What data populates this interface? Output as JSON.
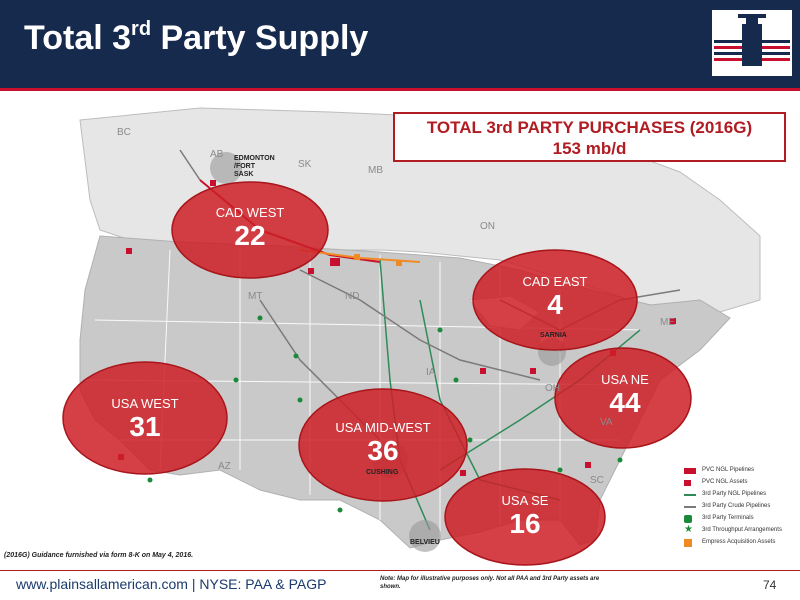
{
  "header": {
    "title_prefix": "Total 3",
    "title_sup": "rd",
    "title_suffix": " Party Supply"
  },
  "purchases": {
    "title": "TOTAL 3rd PARTY PURCHASES (2016G)",
    "value": "153 mb/d"
  },
  "regions": [
    {
      "name": "CAD WEST",
      "value": "22"
    },
    {
      "name": "CAD EAST",
      "value": "4"
    },
    {
      "name": "USA WEST",
      "value": "31"
    },
    {
      "name": "USA MID-WEST",
      "value": "36"
    },
    {
      "name": "USA NE",
      "value": "44"
    },
    {
      "name": "USA SE",
      "value": "16"
    }
  ],
  "provinces": [
    "BC",
    "AB",
    "SK",
    "MB",
    "ON",
    "MT",
    "ND",
    "IA",
    "AZ",
    "OH",
    "VA",
    "SC",
    "ME"
  ],
  "cities": {
    "edmonton": "EDMONTON /FORT SASK",
    "sarnia": "SARNIA",
    "cushing": "CUSHING",
    "belvieu": "BELVIEU"
  },
  "legend": [
    {
      "label": "PVC NGL Pipelines",
      "color": "#c8102e"
    },
    {
      "label": "PVC NGL Assets",
      "color": "#c8102e"
    },
    {
      "label": "3rd Party NGL Pipelines",
      "color": "#2e8b57"
    },
    {
      "label": "3rd Party Crude Pipelines",
      "color": "#7a7a7a"
    },
    {
      "label": "3rd Party Terminals",
      "color": "#1a8a3a"
    },
    {
      "label": "3rd Throughput Arrangements",
      "color": "#1a8a3a"
    },
    {
      "label": "Empress Acquisition Assets",
      "color": "#f08a24"
    }
  ],
  "footnote": "(2016G) Guidance furnished via form 8-K on May 4, 2016.",
  "footer": {
    "url": "www.plainsallamerican.com",
    "ticker": "NYSE: PAA & PAGP",
    "note": "Note: Map for illustrative purposes only. Not all PAA and 3rd Party assets are shown.",
    "page": "74"
  },
  "colors": {
    "navy": "#152a4c",
    "accent_red": "#c8102e",
    "ellipse_red": "#cc1f26"
  }
}
